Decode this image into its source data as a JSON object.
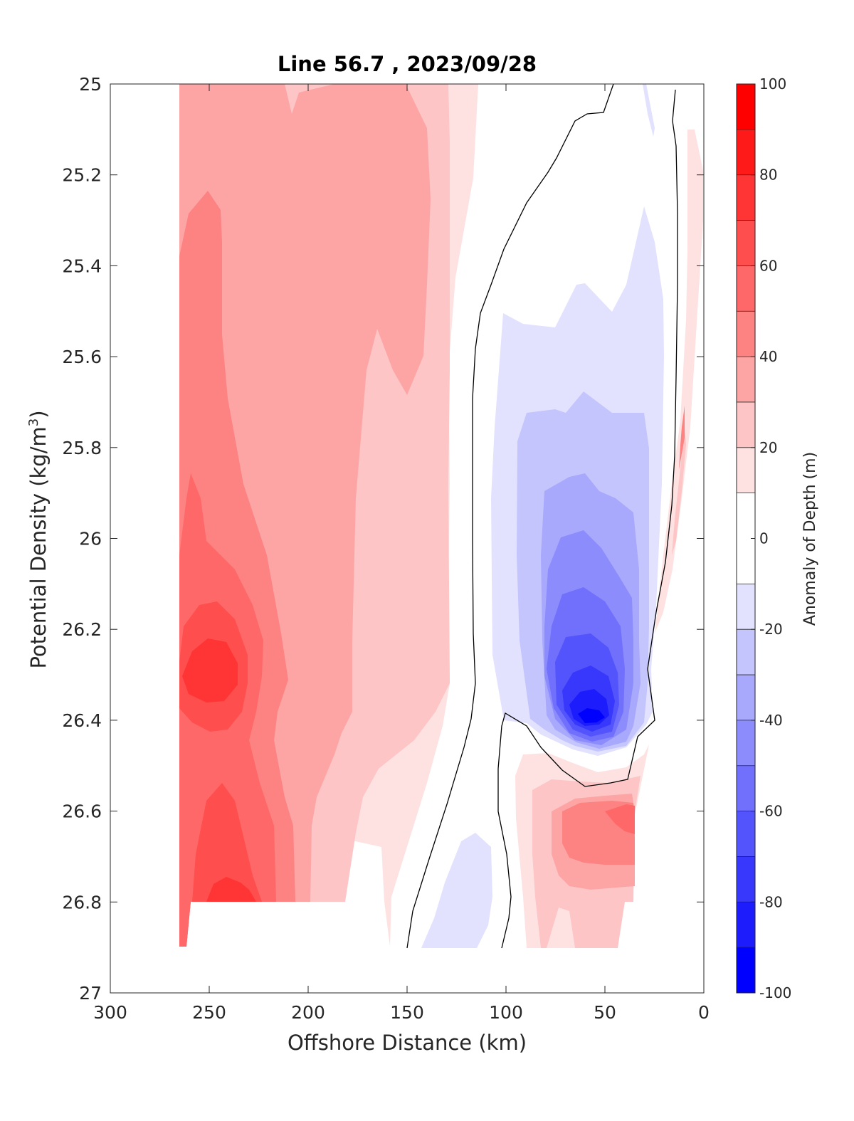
{
  "chart_data": {
    "type": "heatmap",
    "subtype": "filled-contour",
    "title": "Line 56.7 , 2023/09/28",
    "xlabel": "Offshore Distance (km)",
    "ylabel_main": "Potential Density (kg/m",
    "ylabel_sup": "3",
    "ylabel_close": ")",
    "colorbar_label": "Anomaly of Depth (m)",
    "xlim": [
      300,
      0
    ],
    "x_reversed": true,
    "ylim": [
      25,
      27
    ],
    "y_reversed": true,
    "xticks": [
      300,
      250,
      200,
      150,
      100,
      50,
      0
    ],
    "yticks": [
      "25",
      "25.2",
      "25.4",
      "25.6",
      "25.8",
      "26",
      "26.2",
      "26.4",
      "26.6",
      "26.8",
      "27"
    ],
    "colorbar_range": [
      -100,
      100
    ],
    "colorbar_ticks": [
      100,
      80,
      60,
      40,
      20,
      0,
      -20,
      -40,
      -60,
      -80,
      -100
    ],
    "contour_interval": 10,
    "colormap": {
      "levels": [
        {
          "range": [
            90,
            100
          ],
          "color": "#ff0000"
        },
        {
          "range": [
            80,
            90
          ],
          "color": "#ff1a1a"
        },
        {
          "range": [
            70,
            80
          ],
          "color": "#ff3434"
        },
        {
          "range": [
            60,
            70
          ],
          "color": "#ff4e4e"
        },
        {
          "range": [
            50,
            60
          ],
          "color": "#ff6868"
        },
        {
          "range": [
            40,
            50
          ],
          "color": "#fd8282"
        },
        {
          "range": [
            30,
            40
          ],
          "color": "#fda5a5"
        },
        {
          "range": [
            20,
            30
          ],
          "color": "#fdc5c5"
        },
        {
          "range": [
            10,
            20
          ],
          "color": "#fee2e2"
        },
        {
          "range": [
            -10,
            10
          ],
          "color": "#ffffff"
        },
        {
          "range": [
            -20,
            -10
          ],
          "color": "#e2e2fe"
        },
        {
          "range": [
            -30,
            -20
          ],
          "color": "#c5c5fd"
        },
        {
          "range": [
            -40,
            -30
          ],
          "color": "#a8a8fd"
        },
        {
          "range": [
            -50,
            -40
          ],
          "color": "#8c8cfd"
        },
        {
          "range": [
            -60,
            -50
          ],
          "color": "#7070fd"
        },
        {
          "range": [
            -70,
            -60
          ],
          "color": "#5454fd"
        },
        {
          "range": [
            -80,
            -70
          ],
          "color": "#3838fd"
        },
        {
          "range": [
            -90,
            -80
          ],
          "color": "#1c1cfd"
        },
        {
          "range": [
            -100,
            -90
          ],
          "color": "#0000ff"
        }
      ]
    },
    "data_extent": {
      "x_min": 7,
      "x_max": 265,
      "y_min": 25,
      "y_max": 26.9
    },
    "features": [
      {
        "label": "positive anomaly core offshore",
        "x": 247,
        "y": 26.3,
        "value": 75
      },
      {
        "label": "positive anomaly lower offshore",
        "x": 243,
        "y": 26.78,
        "value": 55
      },
      {
        "label": "negative anomaly core nearshore",
        "x": 57,
        "y": 26.39,
        "value": -85
      },
      {
        "label": "positive anomaly below negative core",
        "x": 40,
        "y": 26.65,
        "value": 45
      }
    ],
    "zero_contours": [
      {
        "label": "zero contour offshore side",
        "points": [
          [
            45,
            25
          ],
          [
            48,
            25.05
          ],
          [
            60,
            25.06
          ],
          [
            70,
            25.18
          ],
          [
            90,
            25.35
          ],
          [
            100,
            25.5
          ],
          [
            114,
            25.8
          ],
          [
            114,
            26.2
          ],
          [
            120,
            26.5
          ],
          [
            140,
            26.7
          ],
          [
            150,
            26.9
          ]
        ]
      },
      {
        "label": "zero contour nearshore side",
        "points": [
          [
            14,
            25
          ],
          [
            14,
            25.4
          ],
          [
            17,
            25.8
          ],
          [
            22,
            26.1
          ],
          [
            30,
            26.3
          ],
          [
            25,
            26.4
          ],
          [
            40,
            26.52
          ],
          [
            60,
            26.55
          ],
          [
            75,
            26.5
          ],
          [
            90,
            26.4
          ],
          [
            100,
            26.4
          ],
          [
            100,
            26.6
          ],
          [
            95,
            26.75
          ],
          [
            102,
            26.9
          ]
        ]
      }
    ]
  }
}
